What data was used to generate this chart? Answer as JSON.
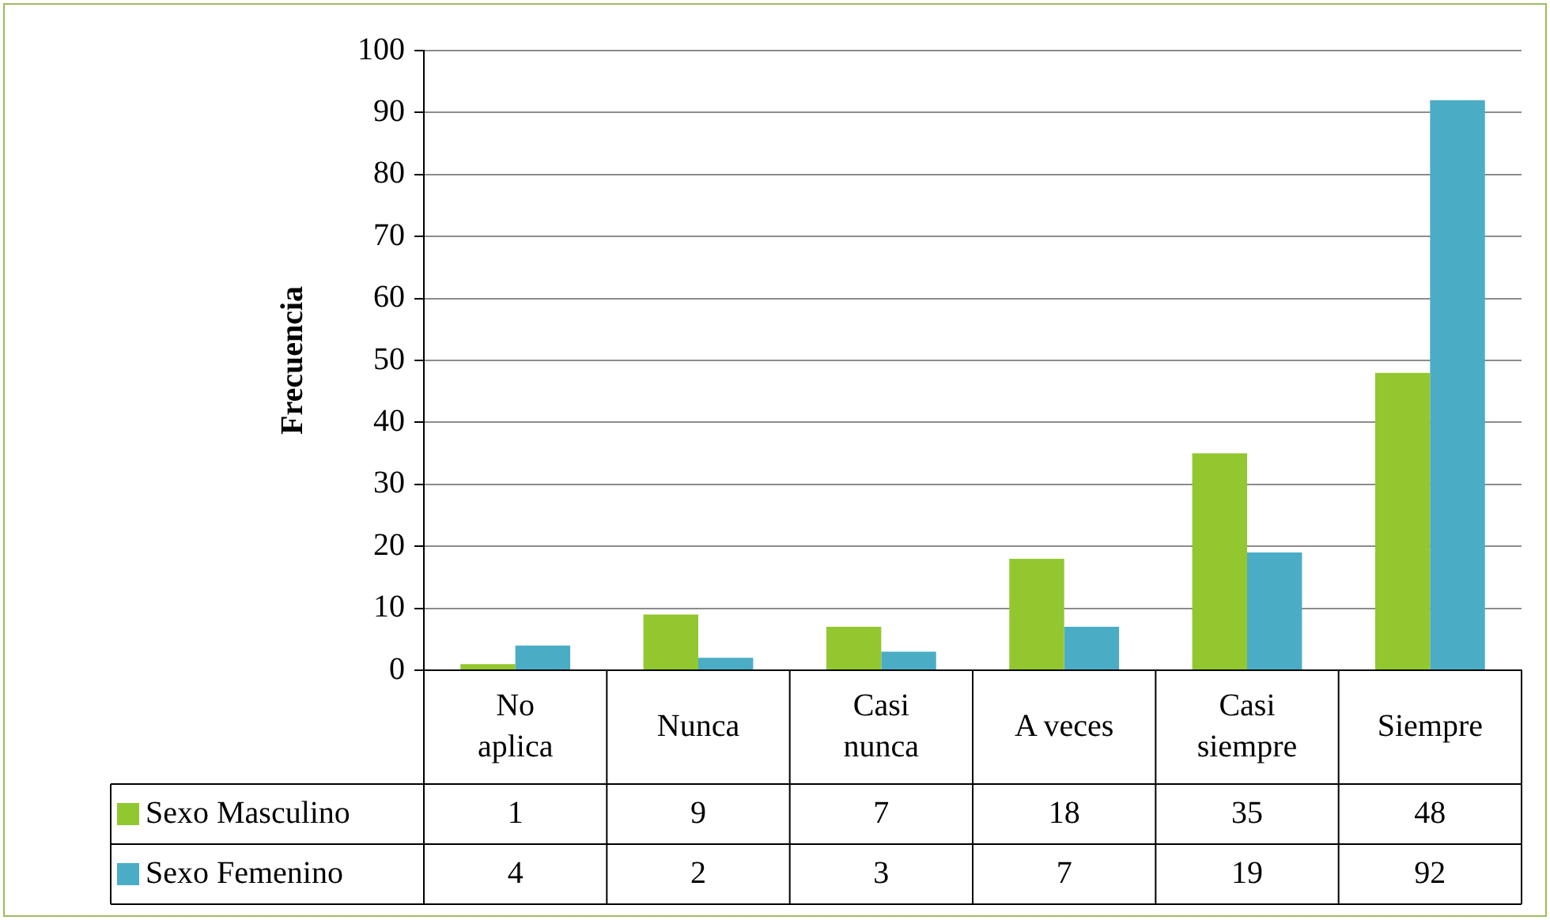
{
  "chart_data": {
    "type": "bar",
    "ylabel": "Frecuencia",
    "categories": [
      "No aplica",
      "Nunca",
      "Casi nunca",
      "A veces",
      "Casi siempre",
      "Siempre"
    ],
    "series": [
      {
        "name": "Sexo Masculino",
        "color": "#92c730",
        "values": [
          1,
          9,
          7,
          18,
          35,
          48
        ]
      },
      {
        "name": "Sexo Femenino",
        "color": "#4bacc6",
        "values": [
          4,
          2,
          3,
          7,
          19,
          92
        ]
      }
    ],
    "ylim": [
      0,
      100
    ],
    "yticks": [
      0,
      10,
      20,
      30,
      40,
      50,
      60,
      70,
      80,
      90,
      100
    ],
    "grid": "y",
    "legend": "bottom",
    "data_labels": true
  }
}
